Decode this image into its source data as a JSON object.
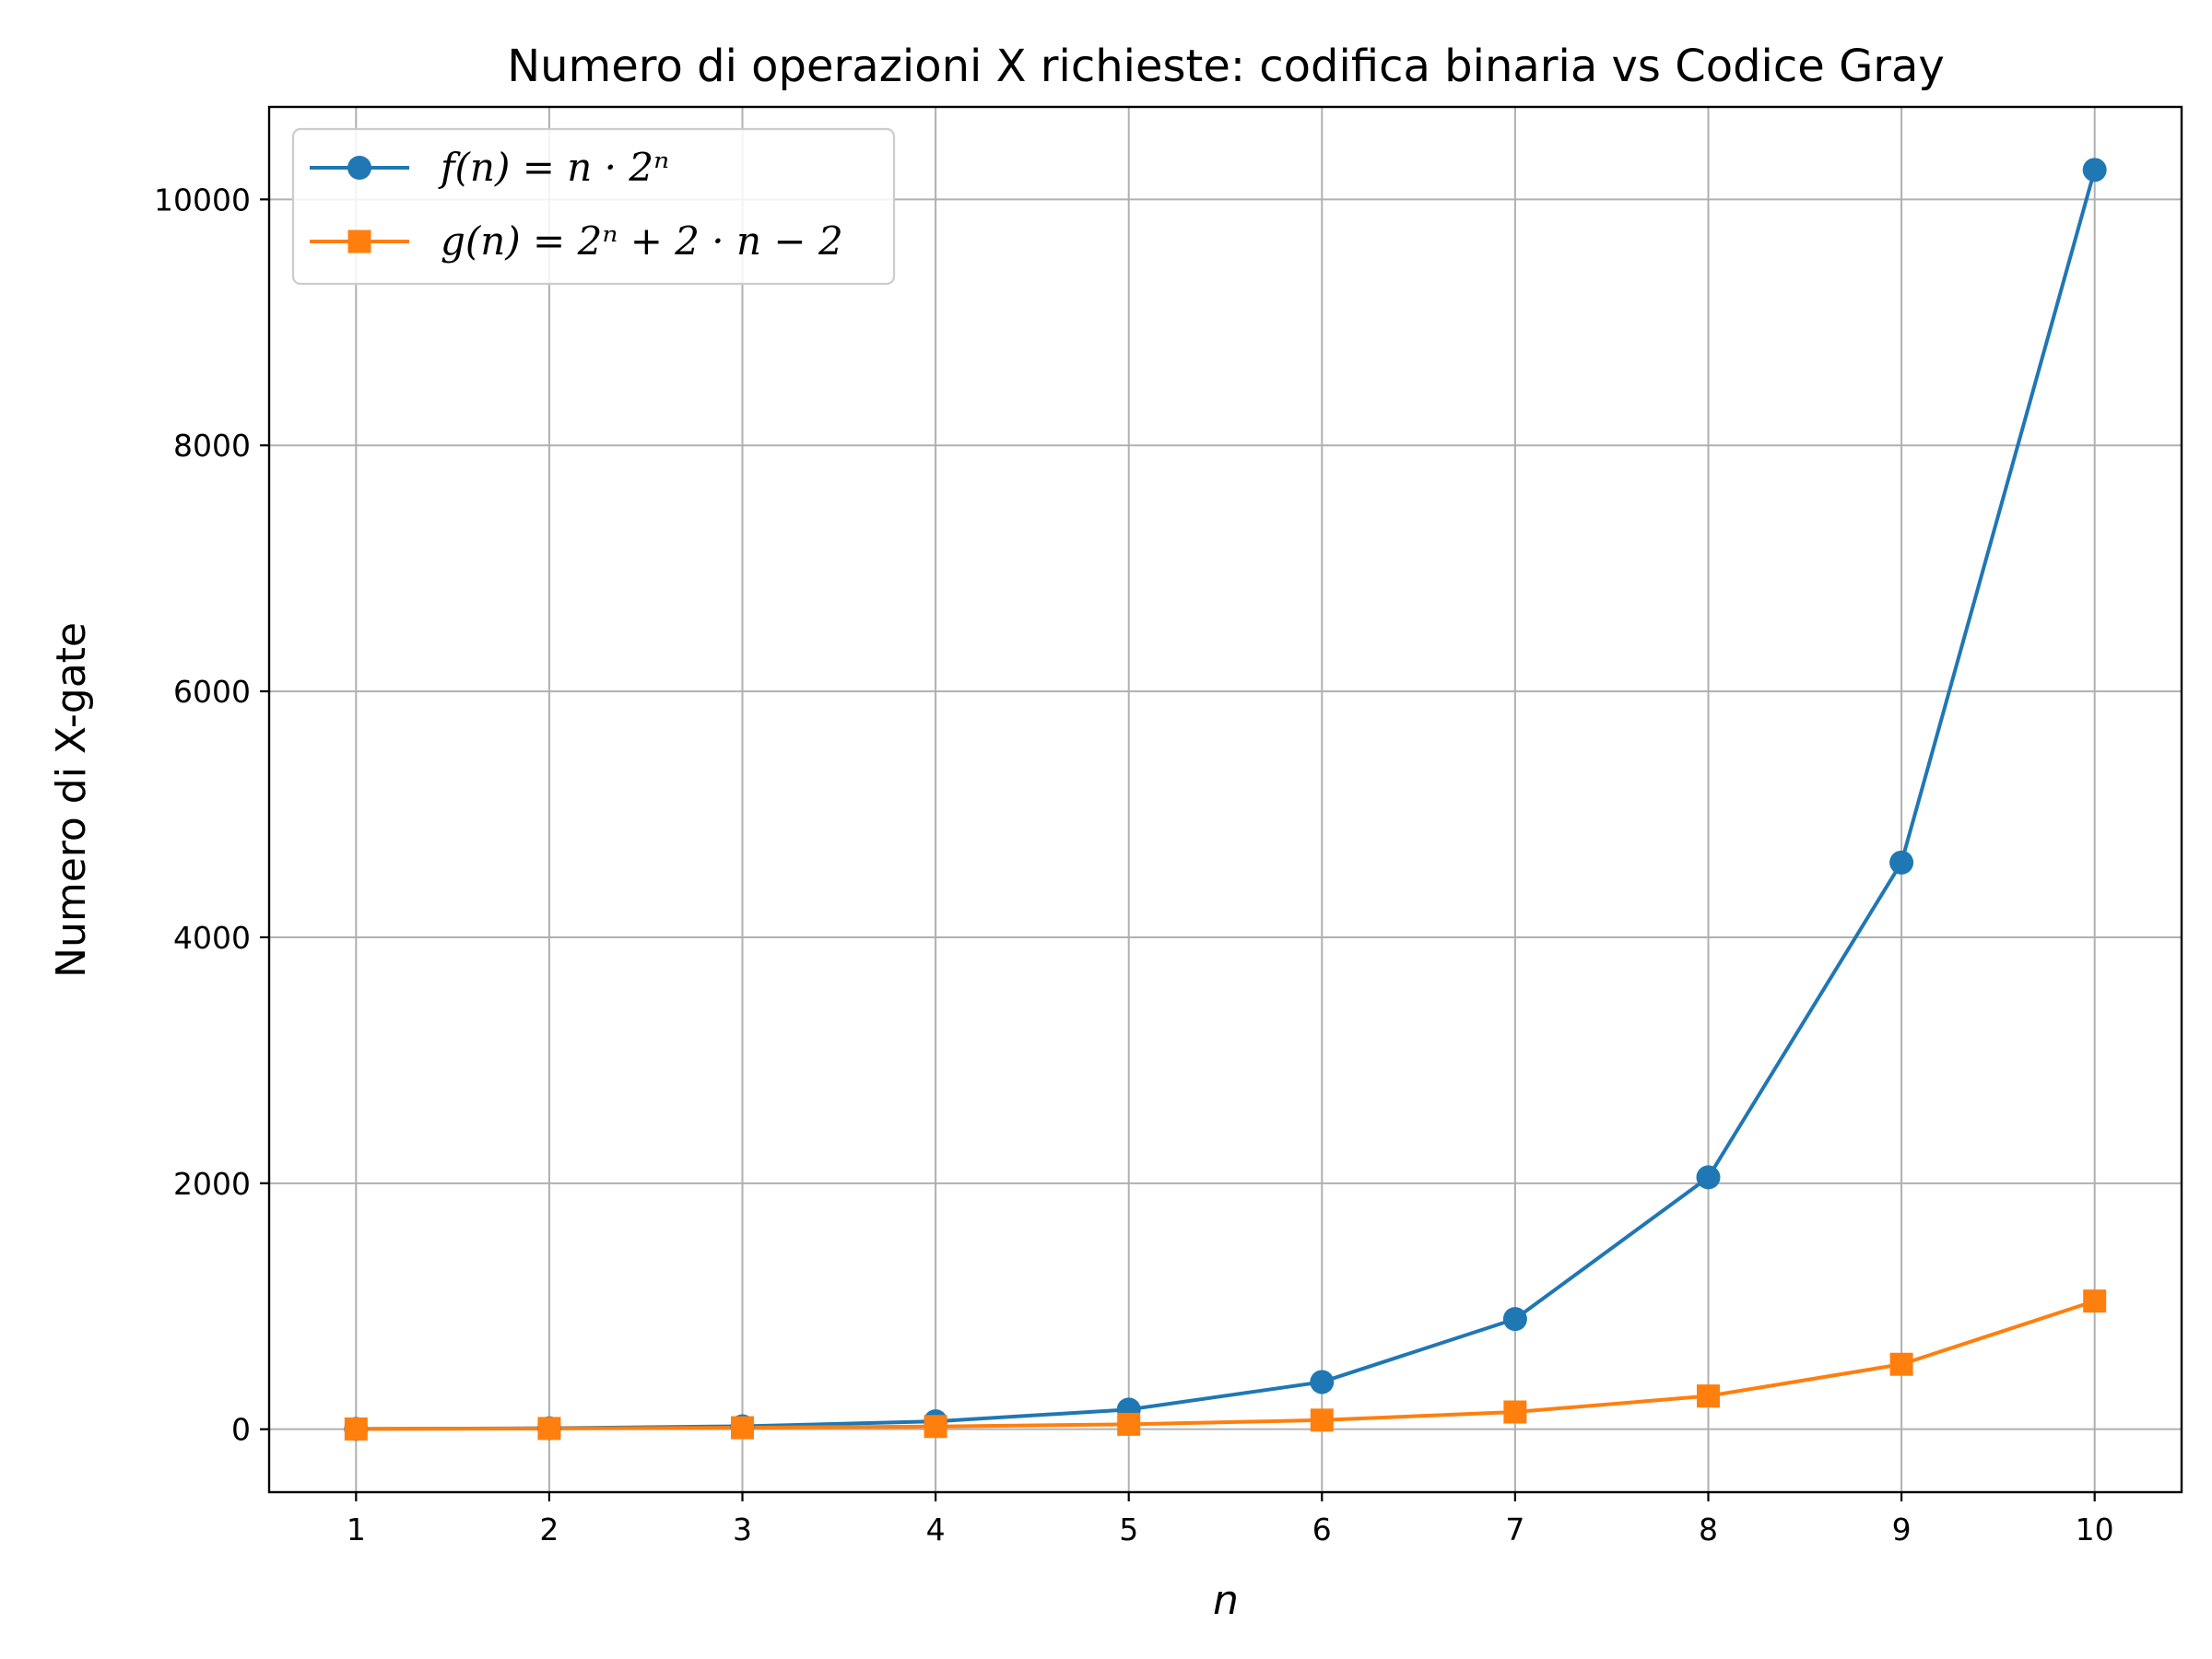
{
  "chart_data": {
    "type": "line",
    "title": "Numero di operazioni X richieste: codifica binaria vs Codice Gray",
    "xlabel": "n",
    "ylabel": "Numero di X-gate",
    "x": [
      1,
      2,
      3,
      4,
      5,
      6,
      7,
      8,
      9,
      10
    ],
    "xlim": [
      0.55,
      10.45
    ],
    "ylim": [
      -512,
      10752
    ],
    "xticks": [
      1,
      2,
      3,
      4,
      5,
      6,
      7,
      8,
      9,
      10
    ],
    "yticks": [
      0,
      2000,
      4000,
      6000,
      8000,
      10000
    ],
    "grid": true,
    "legend_position": "top-left",
    "series": [
      {
        "name": "f(n) = n · 2ⁿ",
        "color": "#1f77b4",
        "marker": "circle",
        "values": [
          2,
          8,
          24,
          64,
          160,
          384,
          896,
          2048,
          4608,
          10240
        ]
      },
      {
        "name": "g(n) = 2ⁿ + 2 · n − 2",
        "color": "#ff7f0e",
        "marker": "square",
        "values": [
          2,
          6,
          12,
          22,
          40,
          74,
          140,
          270,
          528,
          1042
        ]
      }
    ]
  }
}
